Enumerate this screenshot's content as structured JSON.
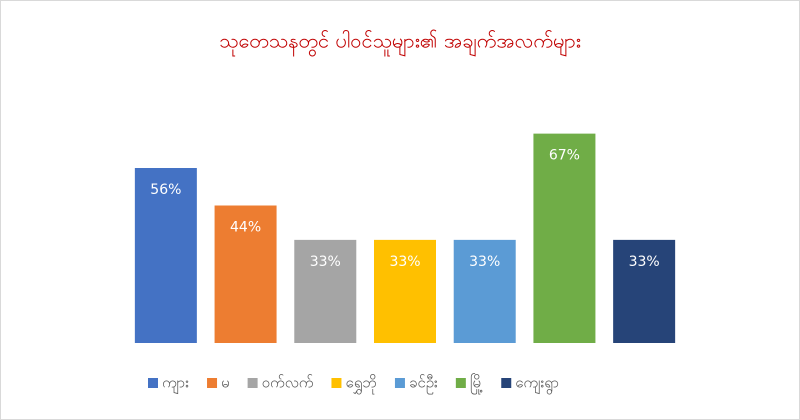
{
  "chart_data": {
    "type": "bar",
    "title": "သုတေသနတွင် ပါဝင်သူများ၏ အချက်အလက်များ",
    "categories": [
      "ကျား",
      "မ",
      "ဝက်လက်",
      "ရွှေဘို",
      "ခင်ဦး",
      "မြို့",
      "ကျေးရွာ"
    ],
    "values": [
      56,
      44,
      33,
      33,
      33,
      67,
      33
    ],
    "value_labels": [
      "56%",
      "44%",
      "33%",
      "33%",
      "33%",
      "67%",
      "33%"
    ],
    "colors": [
      "#4472c4",
      "#ed7d31",
      "#a5a5a5",
      "#ffc000",
      "#5b9bd5",
      "#70ad47",
      "#264478"
    ],
    "ylim": [
      0,
      80
    ],
    "legend": "bottom"
  }
}
